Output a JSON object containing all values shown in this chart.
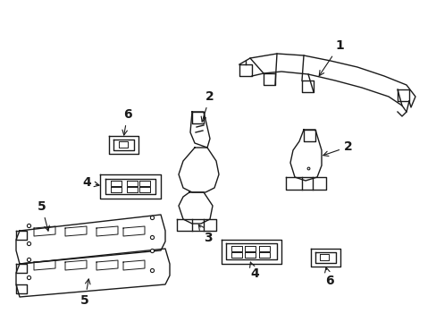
{
  "background_color": "#ffffff",
  "line_color": "#1a1a1a",
  "text_color": "#000000",
  "label_fontsize": 9,
  "fig_width": 4.89,
  "fig_height": 3.6,
  "dpi": 100,
  "lw": 1.0
}
